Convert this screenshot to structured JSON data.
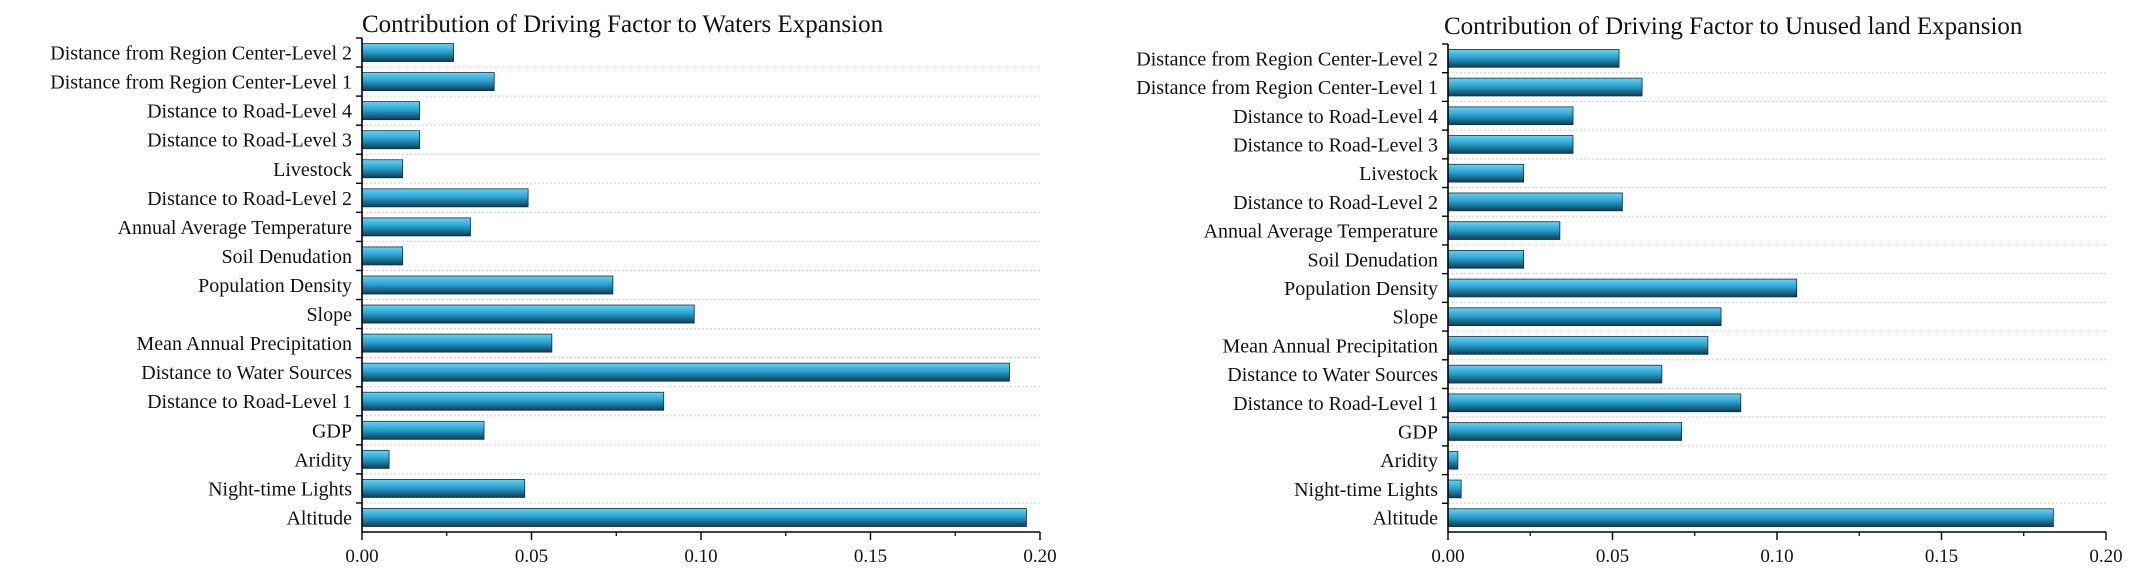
{
  "colors": {
    "bar_top": "#6fd0ef",
    "bar_mid": "#2aa3d2",
    "bar_bottom": "#0b3e58",
    "bar_stroke": "#0a2f44",
    "axis": "#000000",
    "grid": "#d0d0d0"
  },
  "chart_data": [
    {
      "type": "bar",
      "orientation": "horizontal",
      "title": "Contribution of Driving Factor to Waters Expansion",
      "xlabel": "",
      "ylabel": "",
      "xlim": [
        0,
        0.2
      ],
      "xticks": [
        "0.00",
        "0.05",
        "0.10",
        "0.15",
        "0.20"
      ],
      "grid": true,
      "categories": [
        "Distance from Region Center-Level 2",
        "Distance from Region Center-Level 1",
        "Distance to Road-Level 4",
        "Distance to Road-Level 3",
        "Livestock",
        "Distance to Road-Level 2",
        "Annual Average Temperature",
        "Soil Denudation",
        "Population Density",
        "Slope",
        "Mean Annual Precipitation",
        "Distance to Water Sources",
        "Distance to Road-Level 1",
        "GDP",
        "Aridity",
        "Night-time Lights",
        "Altitude"
      ],
      "values": [
        0.027,
        0.039,
        0.017,
        0.017,
        0.012,
        0.049,
        0.032,
        0.012,
        0.074,
        0.098,
        0.056,
        0.191,
        0.089,
        0.036,
        0.008,
        0.048,
        0.196
      ]
    },
    {
      "type": "bar",
      "orientation": "horizontal",
      "title": "Contribution of Driving Factor to Unused land Expansion",
      "xlabel": "",
      "ylabel": "",
      "xlim": [
        0,
        0.2
      ],
      "xticks": [
        "0.00",
        "0.05",
        "0.10",
        "0.15",
        "0.20"
      ],
      "grid": true,
      "categories": [
        "Distance from Region Center-Level 2",
        "Distance from Region Center-Level 1",
        "Distance to Road-Level 4",
        "Distance to Road-Level 3",
        "Livestock",
        "Distance to Road-Level 2",
        "Annual Average Temperature",
        "Soil Denudation",
        "Population Density",
        "Slope",
        "Mean Annual Precipitation",
        "Distance to Water Sources",
        "Distance to Road-Level 1",
        "GDP",
        "Aridity",
        "Night-time Lights",
        "Altitude"
      ],
      "values": [
        0.052,
        0.059,
        0.038,
        0.038,
        0.023,
        0.053,
        0.034,
        0.023,
        0.106,
        0.083,
        0.079,
        0.065,
        0.089,
        0.071,
        0.003,
        0.004,
        0.184
      ]
    }
  ]
}
